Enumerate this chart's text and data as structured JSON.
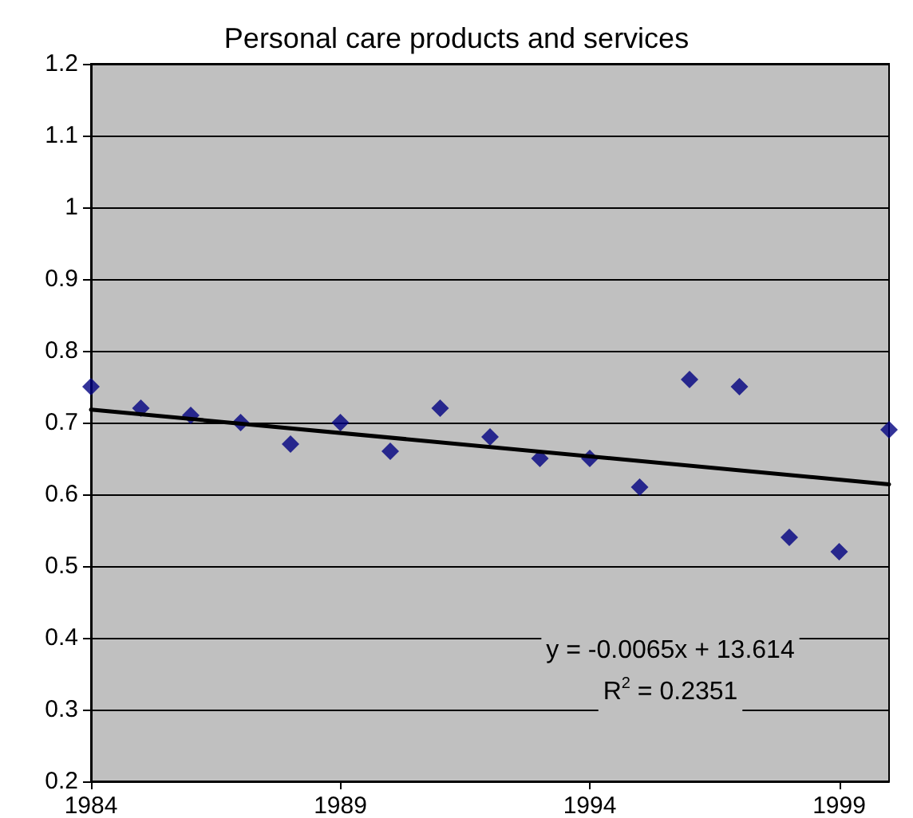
{
  "chart_data": {
    "type": "scatter",
    "title": "Personal care products and services",
    "x": [
      1984,
      1985,
      1986,
      1987,
      1988,
      1989,
      1990,
      1991,
      1992,
      1993,
      1994,
      1995,
      1996,
      1997,
      1998,
      1999,
      2000
    ],
    "series": [
      {
        "color": "#000080",
        "values": [
          0.75,
          0.72,
          0.71,
          0.7,
          0.67,
          0.7,
          0.66,
          0.72,
          0.68,
          0.65,
          0.65,
          0.61,
          0.76,
          0.75,
          0.54,
          0.52,
          0.69
        ]
      },
      {
        "type": "line",
        "marker": "none",
        "color": "#000000",
        "x": [
          1984,
          2000
        ],
        "values": [
          0.718,
          0.614
        ]
      }
    ],
    "xlim": [
      1984,
      2000
    ],
    "xticks": [
      1984,
      1989,
      1994,
      1999
    ],
    "ylim": [
      0.2,
      1.2
    ],
    "yticks": [
      0.2,
      0.3,
      0.4,
      0.5,
      0.6,
      0.7,
      0.8,
      0.9,
      1,
      1.1,
      1.2
    ],
    "grid": "y",
    "marker": "diamond",
    "line_style": "solid",
    "annotations": [
      "y = -0.0065x + 13.614",
      "R$^{2}$ = 0.2351"
    ]
  }
}
